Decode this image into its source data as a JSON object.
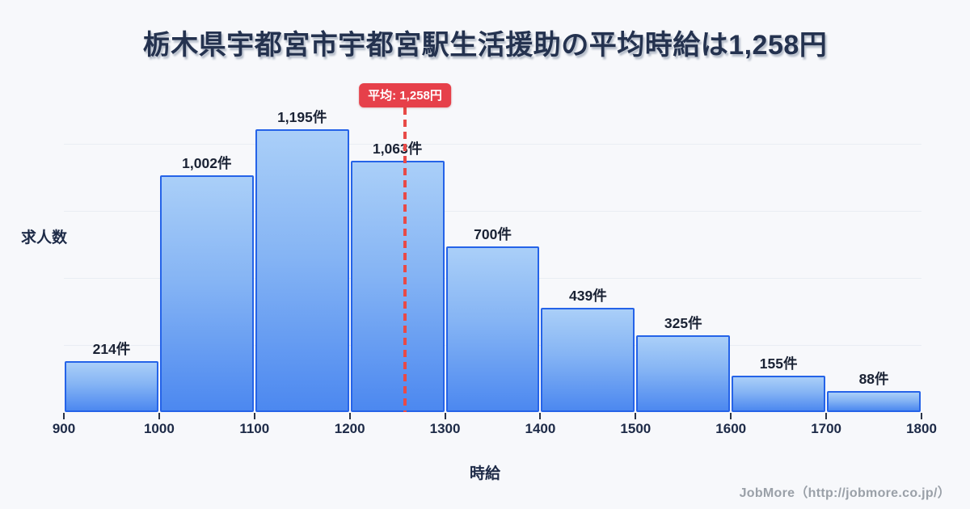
{
  "title": "栃木県宇都宮市宇都宮駅生活援助の平均時給は1,258円",
  "footer": {
    "credit": "JobMore（http://jobmore.co.jp/）"
  },
  "chart_data": {
    "type": "bar",
    "title": "栃木県宇都宮市宇都宮駅生活援助の平均時給は1,258円",
    "xlabel": "時給",
    "ylabel": "求人数",
    "bin_edges": [
      900,
      1000,
      1100,
      1200,
      1300,
      1400,
      1500,
      1600,
      1700,
      1800
    ],
    "categories": [
      "900-1000",
      "1000-1100",
      "1100-1200",
      "1200-1300",
      "1300-1400",
      "1400-1500",
      "1500-1600",
      "1600-1700",
      "1700-1800"
    ],
    "values": [
      214,
      1002,
      1195,
      1063,
      700,
      439,
      325,
      155,
      88
    ],
    "bar_labels": [
      "214件",
      "1,002件",
      "1,195件",
      "1,063件",
      "700件",
      "439件",
      "325件",
      "155件",
      "88件"
    ],
    "x_ticks": [
      "900",
      "1000",
      "1100",
      "1200",
      "1300",
      "1400",
      "1500",
      "1600",
      "1700",
      "1800"
    ],
    "xlim": [
      900,
      1800
    ],
    "ylim": [
      0,
      1250
    ],
    "grid": "faint-horizontal",
    "legend": "none",
    "average": {
      "value": 1258,
      "label": "平均: 1,258円"
    }
  },
  "colors": {
    "background": "#f7f8fb",
    "title_text": "#24324f",
    "bar_fill_top": "#aacff8",
    "bar_fill_bottom": "#4c88f0",
    "bar_border": "#2563e8",
    "bar_label_text": "#1a2234",
    "axis_text": "#1d2a47",
    "gridline": "#e9edf3",
    "average_red": "#e6404a",
    "footer_text": "#9aa0a8"
  }
}
